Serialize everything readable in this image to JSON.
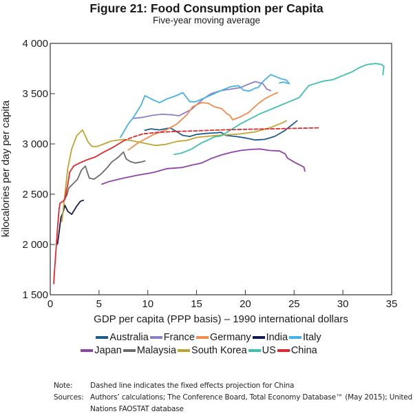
{
  "chart_data": {
    "type": "line",
    "title": "Figure 21: Food Consumption per Capita",
    "subtitle": "Five-year moving average",
    "xlabel": "GDP per capita (PPP basis) – 1990 international dollars",
    "ylabel": "kilocalories per day per capita",
    "xlim": [
      0,
      35
    ],
    "ylim": [
      1500,
      4000
    ],
    "x_ticks": [
      0,
      5,
      10,
      15,
      20,
      25,
      30,
      35
    ],
    "x_tick_labels": [
      "0",
      "5",
      "10",
      "15",
      "20",
      "25",
      "30",
      "35"
    ],
    "y_ticks": [
      1500,
      2000,
      2500,
      3000,
      3500,
      4000
    ],
    "y_tick_labels": [
      "1 500",
      "2 000",
      "2 500",
      "3 000",
      "3 500",
      "4 000"
    ],
    "grid": false,
    "legend_position": "bottom",
    "series": [
      {
        "name": "Australia",
        "color": "#1f5a8c",
        "dashed": false,
        "points": [
          [
            9.7,
            3135
          ],
          [
            10.3,
            3150
          ],
          [
            11.2,
            3140
          ],
          [
            12.3,
            3160
          ],
          [
            13.0,
            3120
          ],
          [
            13.6,
            3085
          ],
          [
            14.3,
            3075
          ],
          [
            15.0,
            3095
          ],
          [
            16.0,
            3105
          ],
          [
            17.0,
            3110
          ],
          [
            17.5,
            3115
          ],
          [
            18.0,
            3085
          ],
          [
            19.0,
            3075
          ],
          [
            20.0,
            3060
          ],
          [
            21.0,
            3040
          ],
          [
            22.0,
            3045
          ],
          [
            23.0,
            3075
          ],
          [
            24.0,
            3130
          ],
          [
            25.3,
            3230
          ]
        ]
      },
      {
        "name": "France",
        "color": "#8c7fc8",
        "dashed": false,
        "points": [
          [
            8.6,
            3255
          ],
          [
            9.5,
            3265
          ],
          [
            10.5,
            3285
          ],
          [
            11.5,
            3295
          ],
          [
            12.5,
            3290
          ],
          [
            13.2,
            3280
          ],
          [
            14.5,
            3345
          ],
          [
            15.7,
            3450
          ],
          [
            16.5,
            3500
          ],
          [
            17.5,
            3530
          ],
          [
            18.5,
            3545
          ],
          [
            19.5,
            3560
          ],
          [
            20.2,
            3590
          ],
          [
            21.0,
            3620
          ],
          [
            21.8,
            3600
          ],
          [
            22.2,
            3545
          ],
          [
            22.6,
            3530
          ]
        ]
      },
      {
        "name": "Germany",
        "color": "#f58b4c",
        "dashed": false,
        "points": [
          [
            8.0,
            2940
          ],
          [
            9.0,
            3010
          ],
          [
            10.5,
            3090
          ],
          [
            12.0,
            3145
          ],
          [
            13.0,
            3200
          ],
          [
            14.0,
            3290
          ],
          [
            14.6,
            3370
          ],
          [
            15.5,
            3410
          ],
          [
            16.2,
            3405
          ],
          [
            16.8,
            3370
          ],
          [
            17.6,
            3350
          ],
          [
            18.1,
            3300
          ],
          [
            18.4,
            3285
          ],
          [
            18.7,
            3240
          ],
          [
            19.5,
            3270
          ],
          [
            20.3,
            3310
          ],
          [
            21.3,
            3400
          ],
          [
            22.0,
            3450
          ],
          [
            22.8,
            3490
          ],
          [
            23.3,
            3510
          ]
        ]
      },
      {
        "name": "India",
        "color": "#14194f",
        "dashed": false,
        "points": [
          [
            0.75,
            2005
          ],
          [
            0.9,
            2120
          ],
          [
            1.1,
            2270
          ],
          [
            1.3,
            2315
          ],
          [
            1.5,
            2390
          ],
          [
            1.8,
            2330
          ],
          [
            2.2,
            2300
          ],
          [
            2.7,
            2380
          ],
          [
            3.1,
            2430
          ],
          [
            3.4,
            2440
          ]
        ]
      },
      {
        "name": "Italy",
        "color": "#45b2e6",
        "dashed": false,
        "points": [
          [
            7.2,
            3065
          ],
          [
            8.0,
            3200
          ],
          [
            8.5,
            3260
          ],
          [
            9.3,
            3385
          ],
          [
            9.7,
            3480
          ],
          [
            10.4,
            3445
          ],
          [
            11.2,
            3410
          ],
          [
            11.9,
            3445
          ],
          [
            12.9,
            3480
          ],
          [
            13.6,
            3510
          ],
          [
            14.3,
            3420
          ],
          [
            14.9,
            3420
          ],
          [
            16.0,
            3465
          ],
          [
            17.5,
            3530
          ],
          [
            18.5,
            3570
          ],
          [
            19.3,
            3580
          ],
          [
            19.8,
            3535
          ],
          [
            20.4,
            3525
          ],
          [
            21.0,
            3555
          ],
          [
            21.3,
            3560
          ],
          [
            21.8,
            3620
          ],
          [
            22.6,
            3690
          ],
          [
            23.6,
            3650
          ],
          [
            24.2,
            3635
          ],
          [
            24.5,
            3600
          ],
          [
            23.9,
            3615
          ],
          [
            23.5,
            3607
          ]
        ]
      },
      {
        "name": "Japan",
        "color": "#9042a7",
        "dashed": false,
        "points": [
          [
            5.3,
            2600
          ],
          [
            6.0,
            2625
          ],
          [
            7.5,
            2660
          ],
          [
            9.0,
            2690
          ],
          [
            10.5,
            2715
          ],
          [
            12.0,
            2755
          ],
          [
            13.5,
            2765
          ],
          [
            14.5,
            2790
          ],
          [
            15.5,
            2810
          ],
          [
            16.5,
            2855
          ],
          [
            17.5,
            2890
          ],
          [
            18.5,
            2915
          ],
          [
            19.5,
            2935
          ],
          [
            20.5,
            2945
          ],
          [
            21.5,
            2950
          ],
          [
            22.5,
            2935
          ],
          [
            23.5,
            2930
          ],
          [
            24.1,
            2900
          ],
          [
            24.3,
            2860
          ],
          [
            25.0,
            2820
          ],
          [
            25.6,
            2790
          ],
          [
            26.0,
            2770
          ],
          [
            26.1,
            2730
          ]
        ]
      },
      {
        "name": "Malaysia",
        "color": "#6b6b6b",
        "dashed": false,
        "points": [
          [
            1.4,
            2440
          ],
          [
            1.7,
            2490
          ],
          [
            1.9,
            2560
          ],
          [
            2.3,
            2600
          ],
          [
            2.8,
            2650
          ],
          [
            3.2,
            2740
          ],
          [
            3.6,
            2780
          ],
          [
            4.0,
            2660
          ],
          [
            4.5,
            2650
          ],
          [
            5.2,
            2700
          ],
          [
            5.8,
            2760
          ],
          [
            6.3,
            2820
          ],
          [
            7.0,
            2870
          ],
          [
            7.5,
            2920
          ],
          [
            7.8,
            2850
          ],
          [
            8.2,
            2825
          ],
          [
            8.7,
            2810
          ],
          [
            9.3,
            2820
          ],
          [
            9.7,
            2830
          ]
        ]
      },
      {
        "name": "South Korea",
        "color": "#c0a430",
        "dashed": false,
        "points": [
          [
            1.2,
            2230
          ],
          [
            1.5,
            2500
          ],
          [
            1.8,
            2760
          ],
          [
            2.2,
            2950
          ],
          [
            2.7,
            3080
          ],
          [
            3.3,
            3140
          ],
          [
            3.9,
            3015
          ],
          [
            4.3,
            2975
          ],
          [
            4.8,
            2975
          ],
          [
            5.5,
            3000
          ],
          [
            6.3,
            3030
          ],
          [
            7.5,
            3045
          ],
          [
            8.5,
            3030
          ],
          [
            9.5,
            3010
          ],
          [
            10.8,
            2985
          ],
          [
            11.8,
            2995
          ],
          [
            13.0,
            3025
          ],
          [
            14.0,
            3035
          ],
          [
            15.0,
            3065
          ],
          [
            16.0,
            3075
          ],
          [
            17.0,
            3085
          ],
          [
            18.0,
            3090
          ],
          [
            19.5,
            3100
          ],
          [
            21.0,
            3120
          ],
          [
            22.5,
            3160
          ],
          [
            23.8,
            3210
          ],
          [
            24.2,
            3230
          ]
        ]
      },
      {
        "name": "US",
        "color": "#3ebfb3",
        "dashed": false,
        "points": [
          [
            12.7,
            2895
          ],
          [
            13.5,
            2910
          ],
          [
            14.5,
            2950
          ],
          [
            15.5,
            3010
          ],
          [
            16.2,
            3040
          ],
          [
            16.8,
            3070
          ],
          [
            17.5,
            3080
          ],
          [
            18.5,
            3140
          ],
          [
            19.5,
            3200
          ],
          [
            20.5,
            3250
          ],
          [
            21.5,
            3300
          ],
          [
            22.5,
            3340
          ],
          [
            23.5,
            3380
          ],
          [
            24.5,
            3420
          ],
          [
            25.5,
            3460
          ],
          [
            26.0,
            3520
          ],
          [
            26.5,
            3580
          ],
          [
            27.5,
            3610
          ],
          [
            28.0,
            3625
          ],
          [
            29.0,
            3640
          ],
          [
            30.0,
            3680
          ],
          [
            31.0,
            3720
          ],
          [
            31.7,
            3760
          ],
          [
            32.5,
            3790
          ],
          [
            33.4,
            3800
          ],
          [
            34.0,
            3790
          ],
          [
            34.2,
            3770
          ],
          [
            34.1,
            3690
          ]
        ]
      },
      {
        "name": "China",
        "color": "#e6262b",
        "dashed": false,
        "points": [
          [
            0.35,
            1610
          ],
          [
            0.45,
            1760
          ],
          [
            0.6,
            1960
          ],
          [
            0.75,
            2170
          ],
          [
            0.9,
            2350
          ],
          [
            1.0,
            2410
          ],
          [
            1.3,
            2430
          ],
          [
            1.5,
            2450
          ],
          [
            1.8,
            2600
          ],
          [
            2.0,
            2720
          ],
          [
            2.4,
            2780
          ],
          [
            3.0,
            2810
          ],
          [
            3.7,
            2840
          ],
          [
            4.6,
            2870
          ],
          [
            5.5,
            2920
          ],
          [
            6.5,
            2970
          ],
          [
            7.5,
            3030
          ]
        ]
      },
      {
        "name": "China (fixed effects projection)",
        "color": "#e6262b",
        "dashed": true,
        "in_legend": false,
        "points": [
          [
            7.5,
            3030
          ],
          [
            8.5,
            3070
          ],
          [
            9.5,
            3100
          ],
          [
            11.0,
            3115
          ],
          [
            13.0,
            3125
          ],
          [
            15.0,
            3130
          ],
          [
            17.5,
            3140
          ],
          [
            20.0,
            3145
          ],
          [
            22.5,
            3150
          ],
          [
            25.0,
            3155
          ],
          [
            27.5,
            3160
          ]
        ]
      }
    ]
  },
  "legend": {
    "row1": [
      {
        "label": "Australia",
        "color": "#1f5a8c"
      },
      {
        "label": "France",
        "color": "#8c7fc8"
      },
      {
        "label": "Germany",
        "color": "#f58b4c"
      },
      {
        "label": "India",
        "color": "#14194f"
      },
      {
        "label": "Italy",
        "color": "#45b2e6"
      }
    ],
    "row2": [
      {
        "label": "Japan",
        "color": "#9042a7"
      },
      {
        "label": "Malaysia",
        "color": "#6b6b6b"
      },
      {
        "label": "South Korea",
        "color": "#c0a430"
      },
      {
        "label": "US",
        "color": "#3ebfb3"
      },
      {
        "label": "China",
        "color": "#e6262b"
      }
    ]
  },
  "notes": {
    "note_key": "Note:",
    "note_text": "Dashed line indicates the fixed effects projection for China",
    "sources_key": "Sources:",
    "sources_text": "Authors’ calculations; The Conference Board, Total Economy Database™ (May 2015); United Nations FAOSTAT database"
  }
}
